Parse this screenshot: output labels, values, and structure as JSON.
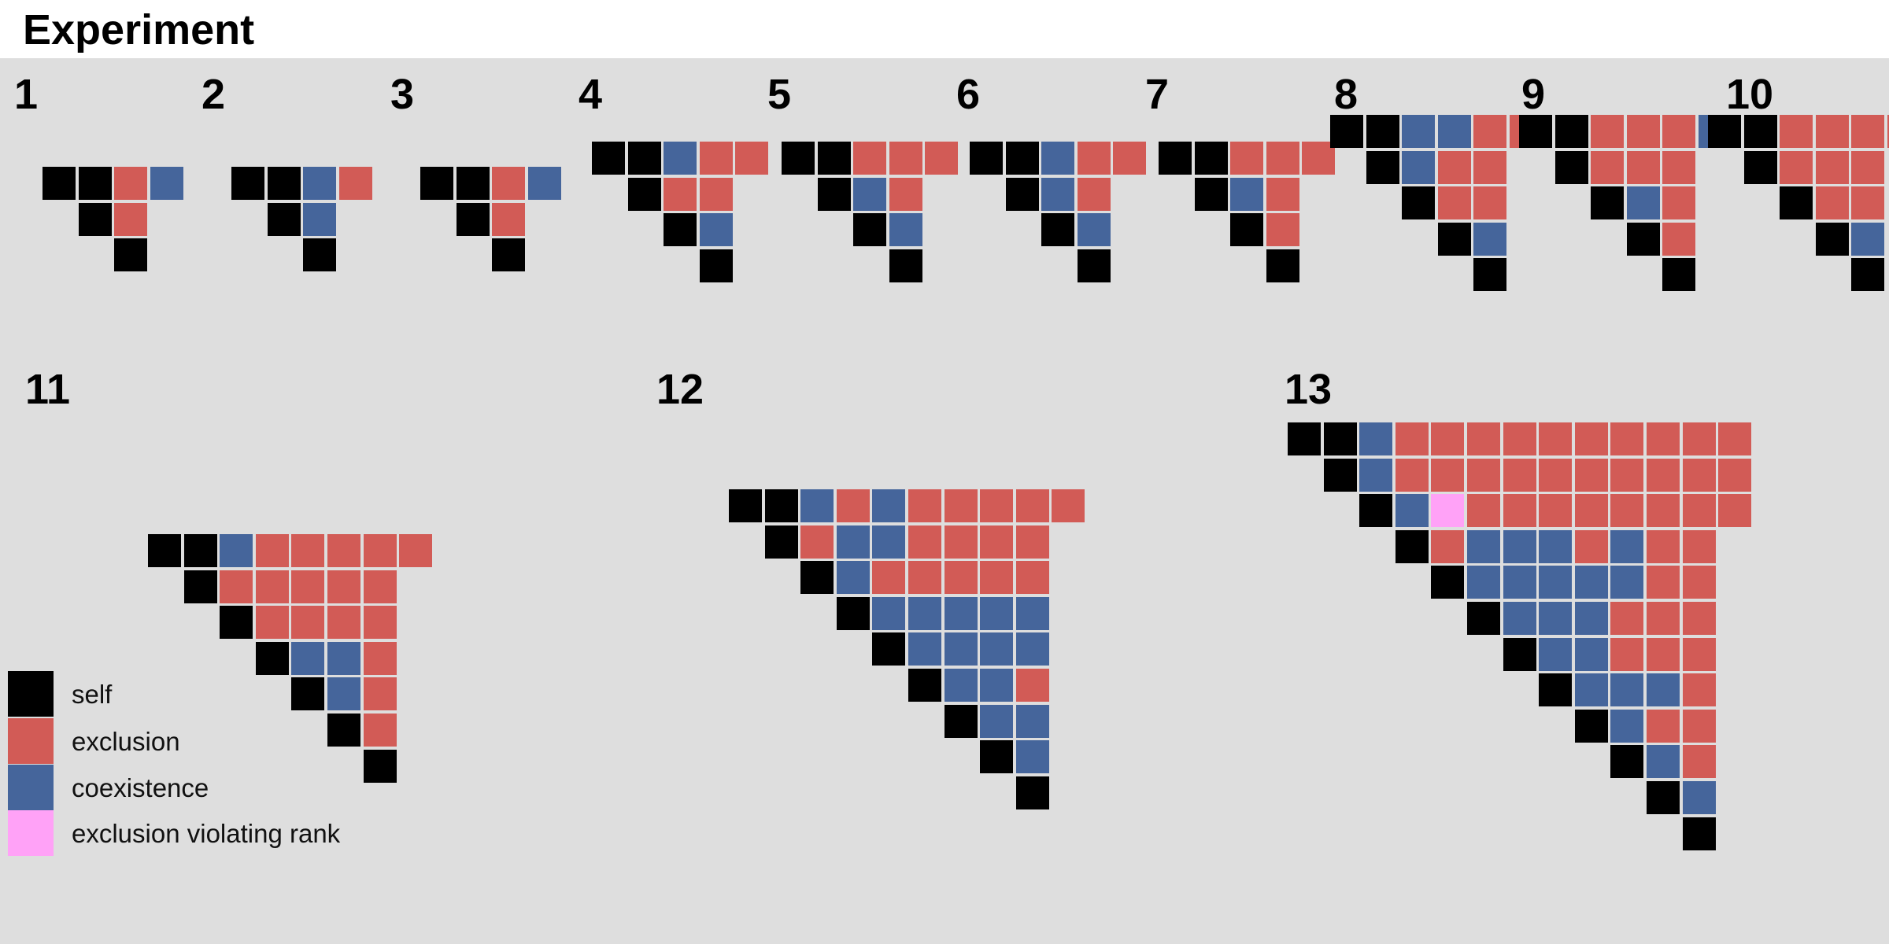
{
  "title": "Experiment",
  "colors": {
    "self": "#000000",
    "exclusion": "#d25b56",
    "coexistence": "#45659b",
    "violation": "#ffa2f7",
    "background": "#dedede"
  },
  "legend": [
    {
      "key": "S",
      "label": "self"
    },
    {
      "key": "E",
      "label": "exclusion"
    },
    {
      "key": "C",
      "label": "coexistence"
    },
    {
      "key": "V",
      "label": "exclusion violating rank"
    }
  ],
  "matrices": [
    {
      "label": "1",
      "rows": [
        "SEC",
        "E",
        ""
      ]
    },
    {
      "label": "2",
      "rows": [
        "SCE",
        "C",
        ""
      ]
    },
    {
      "label": "3",
      "rows": [
        "SEC",
        "E",
        ""
      ]
    },
    {
      "label": "4",
      "rows": [
        "SCEE",
        "EE",
        "C",
        ""
      ]
    },
    {
      "label": "5",
      "rows": [
        "SEEE",
        "CE",
        "C",
        ""
      ]
    },
    {
      "label": "6",
      "rows": [
        "SCEE",
        "CE",
        "C",
        ""
      ]
    },
    {
      "label": "7",
      "rows": [
        "SEEE",
        "CE",
        "E",
        ""
      ]
    },
    {
      "label": "8",
      "rows": [
        "SCCEE",
        "CEE",
        "EE",
        "C",
        ""
      ]
    },
    {
      "label": "9",
      "rows": [
        "SEEEC",
        "EEE",
        "CE",
        "E",
        ""
      ]
    },
    {
      "label": "10",
      "rows": [
        "SEEEE",
        "EEE",
        "EE",
        "C",
        ""
      ]
    },
    {
      "label": "11",
      "rows": [
        "SCEEEEE",
        "EEEEE",
        "EEEE",
        "CCE",
        "CE",
        "E",
        ""
      ]
    },
    {
      "label": "12",
      "rows": [
        "SCECEEEEE",
        "ECCEEEE",
        "CEEEEE",
        "CCCCC",
        "CCCC",
        "CCE",
        "CC",
        "C",
        ""
      ]
    },
    {
      "label": "13",
      "rows": [
        "SCEEEEEEEEEE",
        "CEEEEEEEEEE",
        "CVEEEEEEEE",
        "ECCCECEE",
        "CCCCCEE",
        "CCCEEE",
        "CCEEE",
        "CCCE",
        "CEE",
        "CE",
        "C",
        ""
      ]
    }
  ]
}
